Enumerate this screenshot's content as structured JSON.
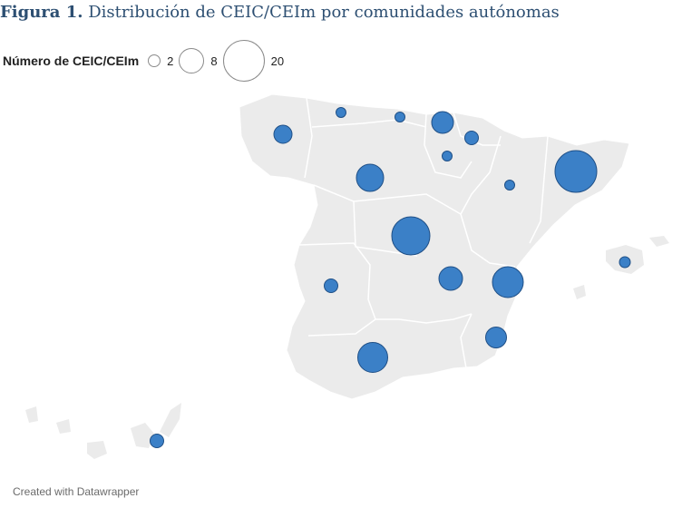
{
  "title": {
    "prefix": "Figura 1.",
    "text": "Distribución de CEIC/CEIm por comunidades autónomas"
  },
  "legend": {
    "title": "Número de CEIC/CEIm",
    "items": [
      {
        "label": "2",
        "value": 2
      },
      {
        "label": "8",
        "value": 8
      },
      {
        "label": "20",
        "value": 20
      }
    ]
  },
  "colors": {
    "land": "#ebebeb",
    "border": "#ffffff",
    "bubble_fill": "#3b80c7",
    "bubble_stroke": "#1f4f86",
    "title": "#2d4f72"
  },
  "credit": "Created with Datawrapper"
}
